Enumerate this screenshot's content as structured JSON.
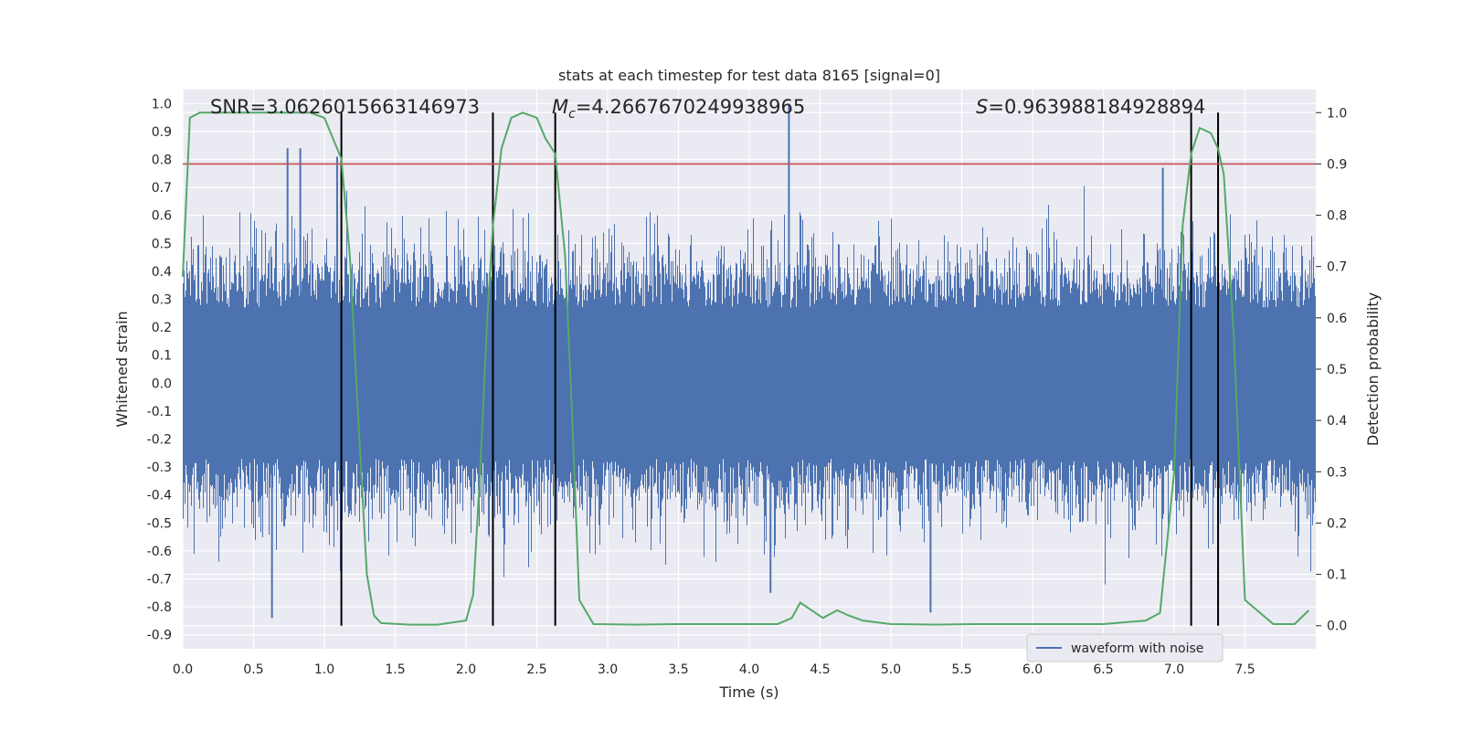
{
  "chart_data": {
    "type": "line",
    "title": "stats at each timestep for test data 8165 [signal=0]",
    "xlabel": "Time (s)",
    "ylabel": "Whitened strain",
    "y2label": "Detection probability",
    "xlim": [
      0,
      8.0
    ],
    "ylim": [
      -0.95,
      1.05
    ],
    "y2lim": [
      -0.045,
      1.045
    ],
    "xticks": [
      "0.0",
      "0.5",
      "1.0",
      "1.5",
      "2.0",
      "2.5",
      "3.0",
      "3.5",
      "4.0",
      "4.5",
      "5.0",
      "5.5",
      "6.0",
      "6.5",
      "7.0",
      "7.5"
    ],
    "yticks": [
      "1.0",
      "0.9",
      "0.8",
      "0.7",
      "0.6",
      "0.5",
      "0.4",
      "0.3",
      "0.2",
      "0.1",
      "0.0",
      "-0.1",
      "-0.2",
      "-0.3",
      "-0.4",
      "-0.5",
      "-0.6",
      "-0.7",
      "-0.8",
      "-0.9"
    ],
    "y2ticks": [
      "1.0",
      "0.9",
      "0.8",
      "0.7",
      "0.6",
      "0.5",
      "0.4",
      "0.3",
      "0.2",
      "0.1",
      "0.0"
    ],
    "grid": true,
    "legend_position": "lower-right",
    "annotations": {
      "snr": "SNR=3.0626015663146973",
      "mc": "=4.2667670249938965",
      "mc_symbol": "M",
      "mc_sub": "c",
      "s": "=0.963988184928894",
      "s_symbol": "S"
    },
    "threshold": 0.9,
    "vertical_lines": [
      1.12,
      2.19,
      2.63,
      7.12,
      7.31
    ],
    "series": [
      {
        "name": "waveform with noise",
        "color": "#4c72b0",
        "kind": "noise-envelope",
        "core_amplitude": 0.27,
        "max_positive": 1.0,
        "max_negative": -0.84,
        "notable_peaks": [
          {
            "x": 4.28,
            "y": 1.0
          },
          {
            "x": 0.74,
            "y": 0.84
          },
          {
            "x": 0.83,
            "y": 0.84
          },
          {
            "x": 1.09,
            "y": 0.81
          },
          {
            "x": 6.92,
            "y": 0.77
          },
          {
            "x": 0.63,
            "y": -0.84
          },
          {
            "x": 5.28,
            "y": -0.82
          },
          {
            "x": 4.15,
            "y": -0.75
          }
        ]
      },
      {
        "kind": "probability",
        "color": "#55a868",
        "x": [
          0.0,
          0.05,
          0.12,
          0.3,
          0.6,
          0.9,
          1.0,
          1.06,
          1.12,
          1.18,
          1.24,
          1.3,
          1.35,
          1.4,
          1.6,
          1.8,
          2.0,
          2.05,
          2.1,
          2.15,
          2.19,
          2.25,
          2.32,
          2.4,
          2.5,
          2.56,
          2.63,
          2.7,
          2.75,
          2.8,
          2.9,
          3.2,
          3.5,
          3.8,
          4.0,
          4.2,
          4.3,
          4.36,
          4.44,
          4.52,
          4.62,
          4.7,
          4.8,
          5.0,
          5.3,
          5.6,
          5.9,
          6.2,
          6.5,
          6.8,
          6.9,
          7.0,
          7.06,
          7.12,
          7.18,
          7.26,
          7.31,
          7.35,
          7.42,
          7.5,
          7.7,
          7.85,
          7.95
        ],
        "values": [
          0.68,
          0.99,
          1.0,
          1.0,
          1.0,
          1.0,
          0.99,
          0.95,
          0.91,
          0.72,
          0.4,
          0.1,
          0.02,
          0.005,
          0.002,
          0.002,
          0.01,
          0.06,
          0.3,
          0.6,
          0.78,
          0.93,
          0.99,
          1.0,
          0.99,
          0.95,
          0.92,
          0.72,
          0.4,
          0.05,
          0.003,
          0.002,
          0.003,
          0.003,
          0.003,
          0.003,
          0.015,
          0.045,
          0.03,
          0.015,
          0.03,
          0.02,
          0.01,
          0.003,
          0.002,
          0.003,
          0.003,
          0.003,
          0.003,
          0.01,
          0.025,
          0.3,
          0.78,
          0.92,
          0.97,
          0.96,
          0.93,
          0.88,
          0.57,
          0.05,
          0.003,
          0.003,
          0.03
        ]
      }
    ]
  }
}
